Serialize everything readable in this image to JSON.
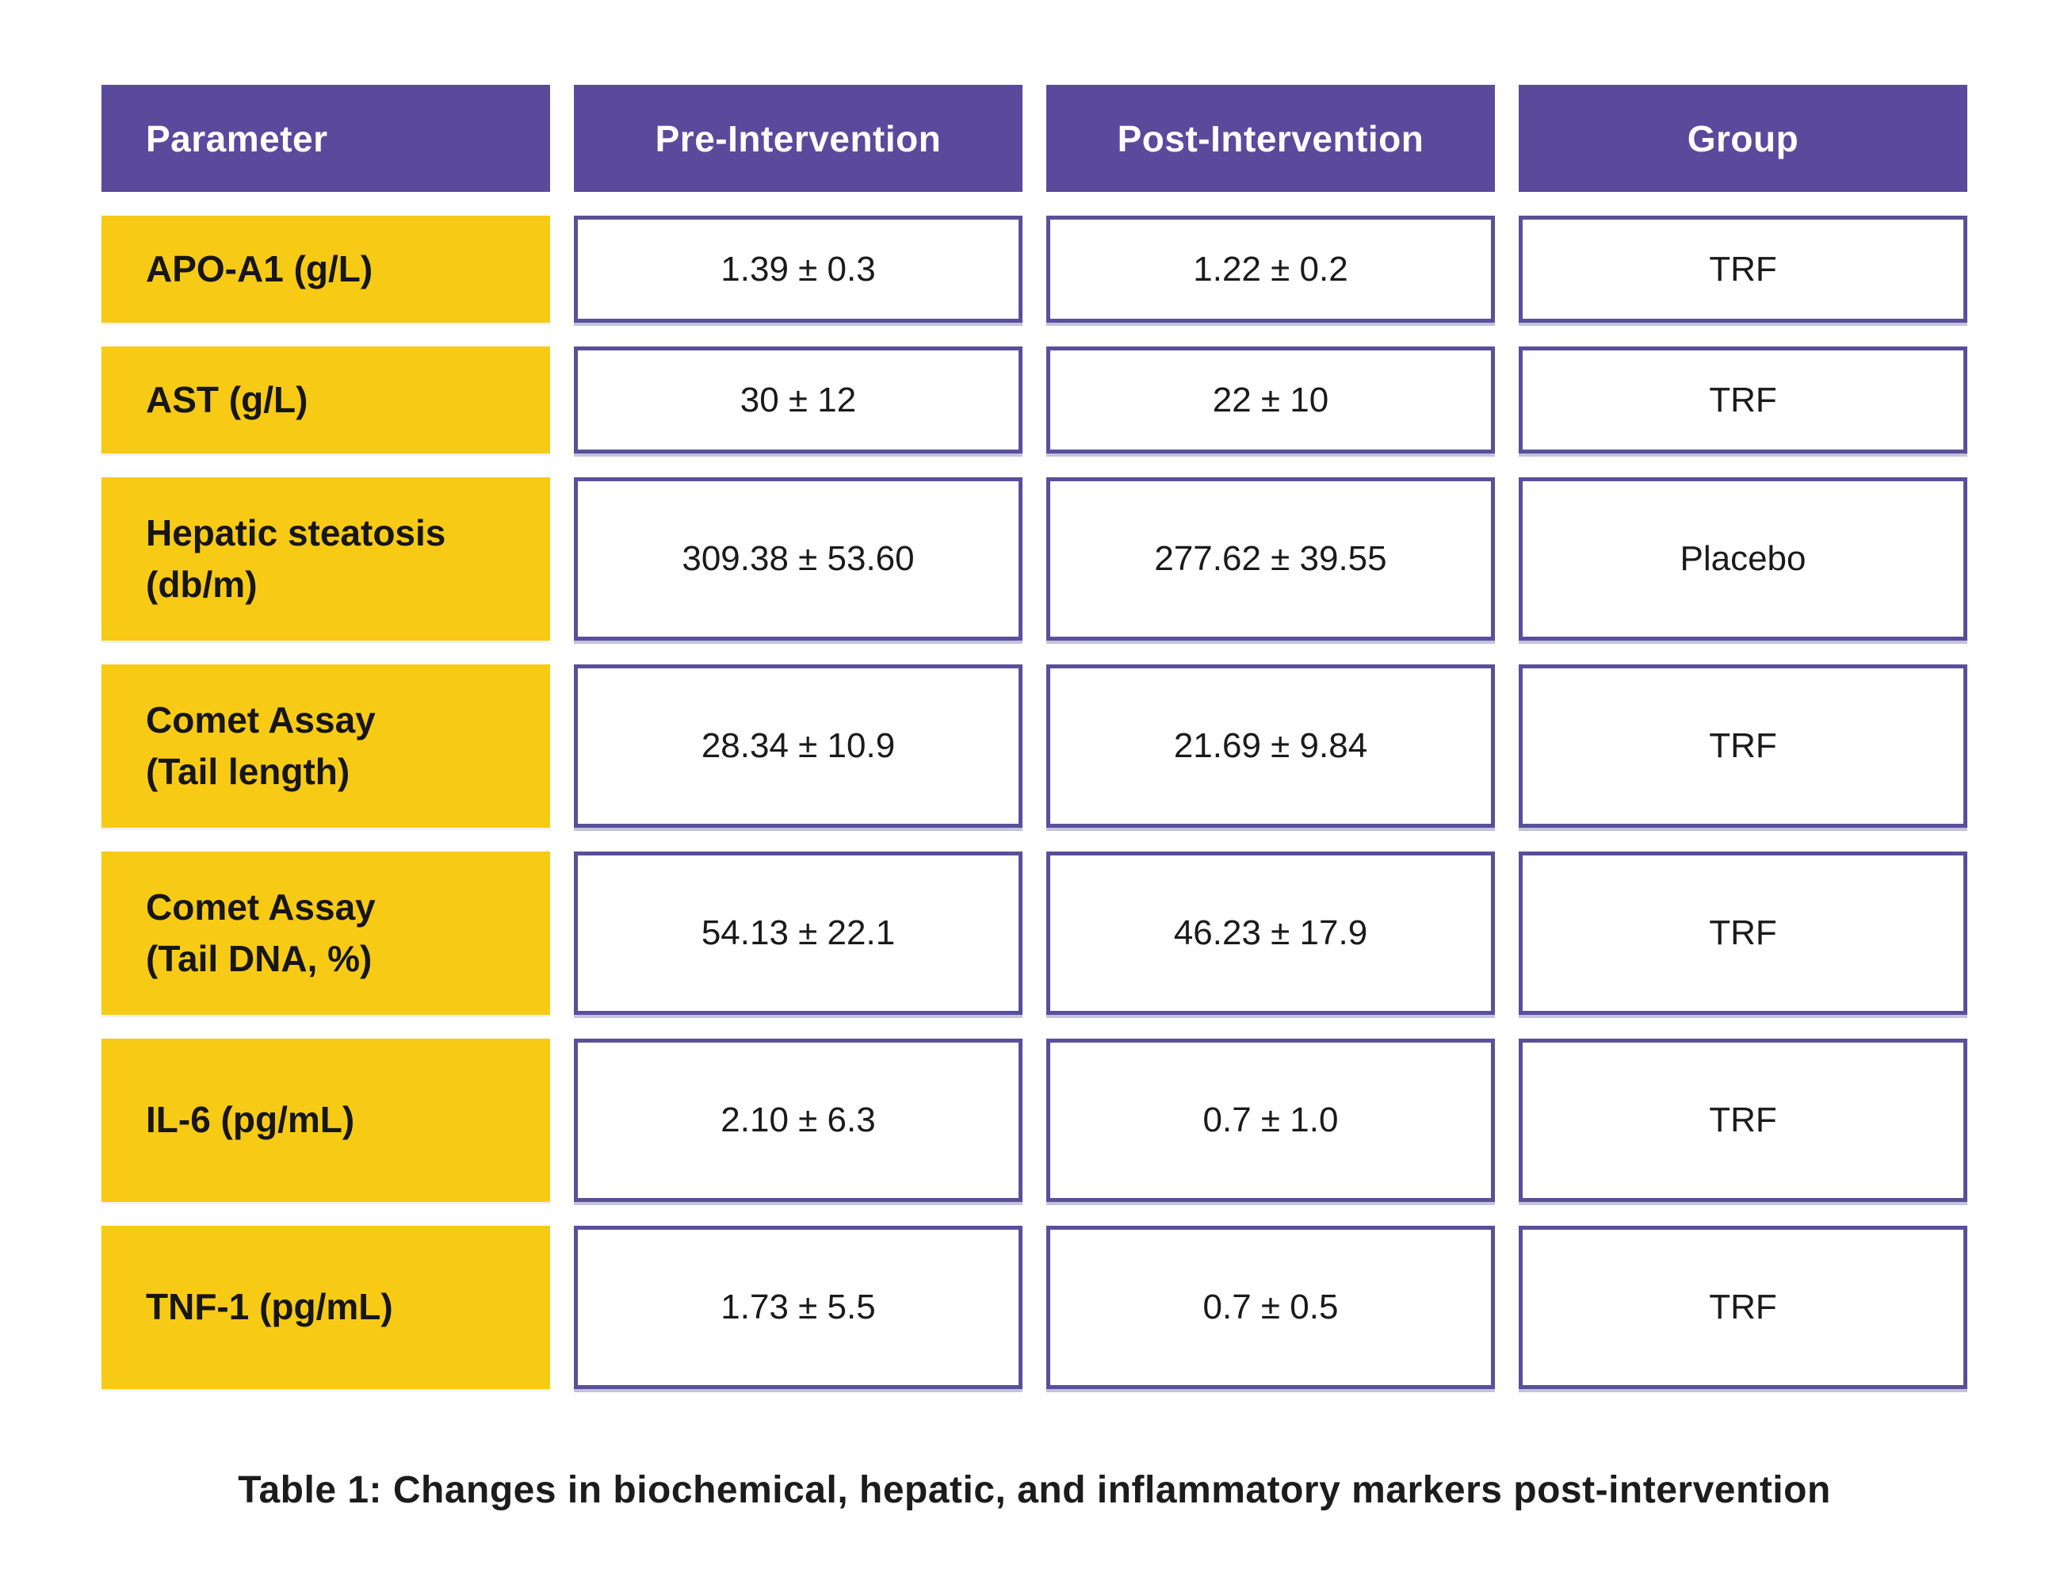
{
  "chart_data": {
    "type": "table",
    "title": "Table 1: Changes in biochemical, hepatic, and inflammatory markers post-intervention",
    "columns": [
      "Parameter",
      "Pre-Intervention",
      "Post-Intervention",
      "Group"
    ],
    "rows": [
      [
        "APO-A1 (g/L)",
        "1.39 ± 0.3",
        "1.22 ± 0.2",
        "TRF"
      ],
      [
        "AST (g/L)",
        "30 ± 12",
        "22 ± 10",
        "TRF"
      ],
      [
        "Hepatic steatosis (db/m)",
        "309.38 ± 53.60",
        "277.62 ± 39.55",
        "Placebo"
      ],
      [
        "Comet Assay (Tail length)",
        "28.34 ± 10.9",
        "21.69 ± 9.84",
        "TRF"
      ],
      [
        "Comet Assay (Tail DNA, %)",
        "54.13 ± 22.1",
        "46.23 ± 17.9",
        "TRF"
      ],
      [
        "IL-6 (pg/mL)",
        "2.10 ± 6.3",
        "0.7 ± 1.0",
        "TRF"
      ],
      [
        "TNF-1 (pg/mL)",
        "1.73 ± 5.5",
        "0.7 ± 0.5",
        "TRF"
      ]
    ],
    "legend": "none",
    "grid": "off"
  },
  "display": {
    "param_labels": [
      "APO-A1 (g/L)",
      "AST (g/L)",
      "Hepatic steatosis\n(db/m)",
      "Comet Assay\n(Tail length)",
      "Comet Assay\n(Tail DNA, %)",
      "IL-6 (pg/mL)",
      "TNF-1 (pg/mL)"
    ]
  },
  "colors": {
    "header_bg": "#5a4a9c",
    "header_text": "#ffffff",
    "param_bg": "#f7ca16",
    "cell_border": "#5a4f9a",
    "body_text": "#1a1a1a"
  }
}
